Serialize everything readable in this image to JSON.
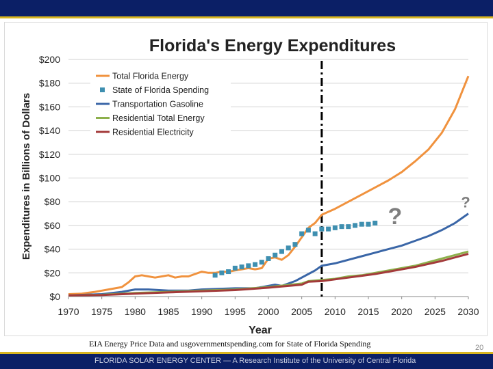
{
  "slide": {
    "source_note": "EIA Energy Price Data and usgovernmentspending.com for State of Florida Spending",
    "page_number": "20",
    "footer": "FLORIDA SOLAR ENERGY CENTER — A Research Institute of the University of Central Florida",
    "colors": {
      "band": "#0b1f66",
      "rule": "#d8b520"
    }
  },
  "chart_data": {
    "type": "line",
    "title": "Florida's Energy Expenditures",
    "xlabel": "Year",
    "ylabel": "Expenditures in Billions of Dollars",
    "xlim": [
      1970,
      2030
    ],
    "ylim": [
      0,
      200
    ],
    "xticks": [
      1970,
      1975,
      1980,
      1985,
      1990,
      1995,
      2000,
      2005,
      2010,
      2015,
      2020,
      2025,
      2030
    ],
    "yticks": [
      0,
      20,
      40,
      60,
      80,
      100,
      120,
      140,
      160,
      180,
      200
    ],
    "ytick_labels": [
      "$0",
      "$20",
      "$40",
      "$60",
      "$80",
      "$100",
      "$120",
      "$140",
      "$160",
      "$180",
      "$200"
    ],
    "grid": "horizontal",
    "legend_position": "top-left",
    "annotations": [
      {
        "text": "?",
        "x": 2019,
        "y": 68,
        "color": "#7f7f7f"
      },
      {
        "text": "?",
        "x": 2030,
        "y": 82,
        "color": "#7f7f7f"
      }
    ],
    "reference_line": {
      "x": 2008,
      "style": "dash-dot",
      "color": "#000000"
    },
    "series": [
      {
        "name": "Total Florida Energy",
        "color": "#f0923e",
        "style": "line",
        "points": [
          [
            1970,
            2
          ],
          [
            1972,
            2.5
          ],
          [
            1974,
            4
          ],
          [
            1975,
            5
          ],
          [
            1976,
            6
          ],
          [
            1977,
            7
          ],
          [
            1978,
            8
          ],
          [
            1979,
            12
          ],
          [
            1980,
            17
          ],
          [
            1981,
            18
          ],
          [
            1982,
            17
          ],
          [
            1983,
            16
          ],
          [
            1984,
            17
          ],
          [
            1985,
            18
          ],
          [
            1986,
            16
          ],
          [
            1987,
            17
          ],
          [
            1988,
            17
          ],
          [
            1989,
            19
          ],
          [
            1990,
            21
          ],
          [
            1991,
            20
          ],
          [
            1992,
            20
          ],
          [
            1993,
            21
          ],
          [
            1994,
            21
          ],
          [
            1995,
            22
          ],
          [
            1996,
            23
          ],
          [
            1997,
            24
          ],
          [
            1998,
            23
          ],
          [
            1999,
            24
          ],
          [
            2000,
            32
          ],
          [
            2001,
            33
          ],
          [
            2002,
            31
          ],
          [
            2003,
            35
          ],
          [
            2004,
            42
          ],
          [
            2005,
            50
          ],
          [
            2006,
            58
          ],
          [
            2007,
            62
          ],
          [
            2008,
            69
          ],
          [
            2010,
            74
          ],
          [
            2012,
            80
          ],
          [
            2014,
            86
          ],
          [
            2016,
            92
          ],
          [
            2018,
            98
          ],
          [
            2020,
            105
          ],
          [
            2022,
            114
          ],
          [
            2024,
            124
          ],
          [
            2026,
            138
          ],
          [
            2028,
            158
          ],
          [
            2030,
            186
          ]
        ]
      },
      {
        "name": "State of Florida Spending",
        "color": "#3e8fb0",
        "style": "markers",
        "points": [
          [
            1992,
            18
          ],
          [
            1993,
            20
          ],
          [
            1994,
            21
          ],
          [
            1995,
            24
          ],
          [
            1996,
            25
          ],
          [
            1997,
            26
          ],
          [
            1998,
            27
          ],
          [
            1999,
            29
          ],
          [
            2000,
            32
          ],
          [
            2001,
            35
          ],
          [
            2002,
            38
          ],
          [
            2003,
            41
          ],
          [
            2004,
            44
          ],
          [
            2005,
            53
          ],
          [
            2006,
            56
          ],
          [
            2007,
            53
          ],
          [
            2008,
            57
          ],
          [
            2009,
            57
          ],
          [
            2010,
            58
          ],
          [
            2011,
            59
          ],
          [
            2012,
            59
          ],
          [
            2013,
            60
          ],
          [
            2014,
            61
          ],
          [
            2015,
            61
          ],
          [
            2016,
            62
          ]
        ]
      },
      {
        "name": "Transportation Gasoline",
        "color": "#3a66a7",
        "style": "line",
        "points": [
          [
            1970,
            1
          ],
          [
            1975,
            2
          ],
          [
            1978,
            4
          ],
          [
            1980,
            6
          ],
          [
            1982,
            6
          ],
          [
            1985,
            5
          ],
          [
            1988,
            5
          ],
          [
            1990,
            6
          ],
          [
            1995,
            7
          ],
          [
            1998,
            7
          ],
          [
            2000,
            9
          ],
          [
            2001,
            10
          ],
          [
            2002,
            9
          ],
          [
            2004,
            13
          ],
          [
            2006,
            19
          ],
          [
            2007,
            22
          ],
          [
            2008,
            26
          ],
          [
            2010,
            28
          ],
          [
            2012,
            31
          ],
          [
            2014,
            34
          ],
          [
            2016,
            37
          ],
          [
            2018,
            40
          ],
          [
            2020,
            43
          ],
          [
            2022,
            47
          ],
          [
            2024,
            51
          ],
          [
            2026,
            56
          ],
          [
            2028,
            62
          ],
          [
            2030,
            70
          ]
        ]
      },
      {
        "name": "Residential Total Energy",
        "color": "#8db04c",
        "style": "line",
        "points": [
          [
            1970,
            1
          ],
          [
            1975,
            1.5
          ],
          [
            1980,
            3
          ],
          [
            1985,
            4
          ],
          [
            1990,
            5
          ],
          [
            1995,
            6
          ],
          [
            2000,
            8
          ],
          [
            2005,
            11
          ],
          [
            2006,
            13
          ],
          [
            2008,
            14
          ],
          [
            2010,
            15
          ],
          [
            2012,
            17
          ],
          [
            2014,
            18
          ],
          [
            2016,
            20
          ],
          [
            2018,
            22
          ],
          [
            2020,
            24
          ],
          [
            2022,
            26
          ],
          [
            2024,
            29
          ],
          [
            2026,
            32
          ],
          [
            2028,
            35
          ],
          [
            2030,
            38
          ]
        ]
      },
      {
        "name": "Residential Electricity",
        "color": "#a33a3a",
        "style": "line",
        "points": [
          [
            1970,
            1
          ],
          [
            1975,
            1.3
          ],
          [
            1980,
            2.5
          ],
          [
            1985,
            3.5
          ],
          [
            1990,
            4.5
          ],
          [
            1995,
            5.5
          ],
          [
            2000,
            7.5
          ],
          [
            2005,
            10
          ],
          [
            2006,
            12.5
          ],
          [
            2008,
            13
          ],
          [
            2010,
            14.5
          ],
          [
            2012,
            16
          ],
          [
            2014,
            17.5
          ],
          [
            2016,
            19
          ],
          [
            2018,
            21
          ],
          [
            2020,
            23
          ],
          [
            2022,
            25
          ],
          [
            2024,
            27.5
          ],
          [
            2026,
            30
          ],
          [
            2028,
            33
          ],
          [
            2030,
            36
          ]
        ]
      }
    ]
  }
}
